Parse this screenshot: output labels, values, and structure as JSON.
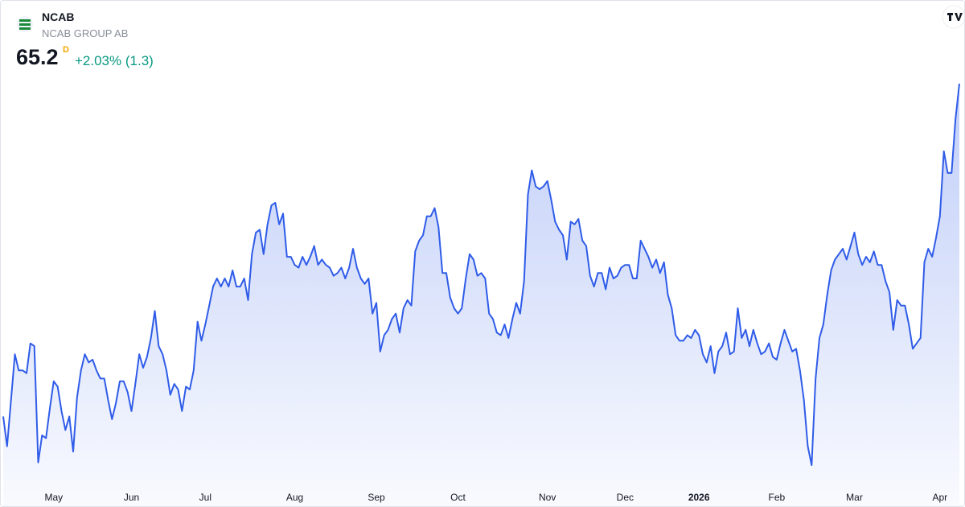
{
  "header": {
    "symbol": "NCAB",
    "name": "NCAB GROUP AB",
    "price": "65.2",
    "interval": "D",
    "change": "+2.03% (1.3)"
  },
  "chart_data": {
    "type": "area",
    "color": "#2f5ce8",
    "values": [
      52.9,
      51.8,
      53.5,
      55.2,
      54.6,
      54.6,
      54.5,
      55.6,
      55.5,
      51.2,
      52.2,
      52.1,
      53.2,
      54.2,
      54.0,
      53.1,
      52.4,
      52.9,
      51.6,
      53.6,
      54.6,
      55.2,
      54.9,
      55.0,
      54.6,
      54.3,
      54.3,
      53.5,
      52.8,
      53.4,
      54.2,
      54.2,
      53.8,
      53.1,
      54.1,
      55.2,
      54.7,
      55.1,
      55.8,
      56.8,
      55.5,
      55.2,
      54.6,
      53.7,
      54.1,
      53.9,
      53.1,
      54.0,
      53.9,
      54.6,
      56.4,
      55.7,
      56.3,
      57.0,
      57.7,
      58.0,
      57.7,
      58.0,
      57.7,
      58.3,
      57.7,
      57.7,
      58.0,
      57.2,
      58.9,
      59.7,
      59.8,
      58.9,
      60.0,
      60.7,
      60.8,
      60.0,
      60.4,
      58.8,
      58.8,
      58.5,
      58.4,
      58.8,
      58.5,
      58.8,
      59.2,
      58.5,
      58.7,
      58.5,
      58.4,
      58.1,
      58.2,
      58.4,
      58.0,
      58.4,
      59.1,
      58.4,
      58.0,
      57.8,
      58.0,
      56.7,
      57.1,
      55.3,
      55.9,
      56.1,
      56.5,
      56.7,
      56.0,
      56.9,
      57.2,
      57.0,
      59.0,
      59.4,
      59.6,
      60.3,
      60.3,
      60.6,
      59.9,
      58.2,
      58.2,
      57.3,
      56.9,
      56.7,
      56.9,
      58.0,
      58.9,
      58.7,
      58.1,
      58.2,
      58.0,
      56.7,
      56.5,
      56.0,
      55.9,
      56.3,
      55.8,
      56.5,
      57.1,
      56.7,
      57.9,
      61.1,
      62.0,
      61.4,
      61.3,
      61.4,
      61.6,
      60.9,
      60.1,
      59.8,
      59.6,
      58.7,
      60.1,
      60.0,
      60.2,
      59.4,
      59.2,
      58.1,
      57.7,
      58.2,
      58.2,
      57.6,
      58.4,
      58.0,
      58.1,
      58.4,
      58.5,
      58.5,
      58.0,
      58.0,
      59.4,
      59.1,
      58.8,
      58.4,
      58.7,
      58.2,
      58.6,
      57.4,
      56.9,
      55.9,
      55.7,
      55.7,
      55.9,
      55.8,
      56.1,
      55.9,
      55.2,
      54.9,
      55.5,
      54.5,
      55.3,
      55.5,
      56.0,
      55.2,
      55.3,
      56.9,
      55.8,
      56.1,
      55.5,
      56.1,
      55.6,
      55.2,
      55.3,
      55.6,
      55.1,
      55.0,
      55.6,
      56.1,
      55.7,
      55.3,
      55.4,
      54.6,
      53.5,
      51.8,
      51.1,
      54.3,
      55.8,
      56.3,
      57.4,
      58.3,
      58.7,
      58.9,
      59.1,
      58.7,
      59.2,
      59.7,
      58.9,
      58.5,
      58.8,
      58.6,
      59.0,
      58.5,
      58.5,
      57.9,
      57.5,
      56.1,
      57.2,
      57.0,
      57.0,
      56.3,
      55.4,
      55.6,
      55.8,
      58.6,
      59.1,
      58.8,
      59.5,
      60.3,
      62.7,
      61.9,
      61.9,
      63.9,
      65.2
    ],
    "xticks": [
      {
        "value": 13,
        "label": "May"
      },
      {
        "value": 33,
        "label": "Jun"
      },
      {
        "value": 52,
        "label": "Jul"
      },
      {
        "value": 75,
        "label": "Aug"
      },
      {
        "value": 96,
        "label": "Sep"
      },
      {
        "value": 117,
        "label": "Oct"
      },
      {
        "value": 140,
        "label": "Nov"
      },
      {
        "value": 160,
        "label": "Dec"
      },
      {
        "value": 179,
        "label": "2026"
      },
      {
        "value": 199,
        "label": "Feb"
      },
      {
        "value": 219,
        "label": "Mar"
      },
      {
        "value": 241,
        "label": "Apr"
      }
    ]
  }
}
